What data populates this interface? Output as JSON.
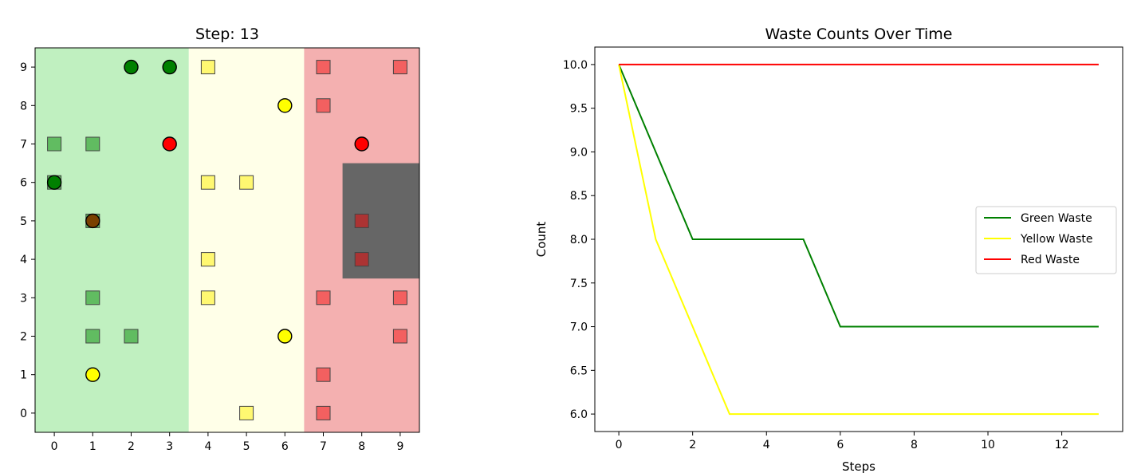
{
  "chart_data": [
    {
      "type": "scatter",
      "title": "Step: 13",
      "xlim": [
        -0.5,
        9.5
      ],
      "ylim": [
        -0.5,
        9.5
      ],
      "x_ticks": [
        0,
        1,
        2,
        3,
        4,
        5,
        6,
        7,
        8,
        9
      ],
      "y_ticks": [
        0,
        1,
        2,
        3,
        4,
        5,
        6,
        7,
        8,
        9
      ],
      "grid": false,
      "zones": [
        {
          "name": "green-zone",
          "x_range": [
            -0.5,
            3.5
          ],
          "color": "#c0f0c0"
        },
        {
          "name": "yellow-zone",
          "x_range": [
            3.5,
            6.5
          ],
          "color": "#ffffe8"
        },
        {
          "name": "red-zone",
          "x_range": [
            6.5,
            9.5
          ],
          "color": "#f4b0b0"
        }
      ],
      "disposal_area": {
        "x_range": [
          7.5,
          9.5
        ],
        "y_range": [
          3.5,
          6.5
        ],
        "color": "#666666"
      },
      "waste": [
        {
          "x": 0,
          "y": 7,
          "color": "green"
        },
        {
          "x": 0,
          "y": 6,
          "color": "green"
        },
        {
          "x": 1,
          "y": 7,
          "color": "green"
        },
        {
          "x": 1,
          "y": 5,
          "color": "green"
        },
        {
          "x": 1,
          "y": 3,
          "color": "green"
        },
        {
          "x": 1,
          "y": 2,
          "color": "green"
        },
        {
          "x": 2,
          "y": 2,
          "color": "green"
        },
        {
          "x": 4,
          "y": 9,
          "color": "yellow"
        },
        {
          "x": 4,
          "y": 6,
          "color": "yellow"
        },
        {
          "x": 5,
          "y": 6,
          "color": "yellow"
        },
        {
          "x": 4,
          "y": 4,
          "color": "yellow"
        },
        {
          "x": 4,
          "y": 3,
          "color": "yellow"
        },
        {
          "x": 5,
          "y": 0,
          "color": "yellow"
        },
        {
          "x": 7,
          "y": 9,
          "color": "red"
        },
        {
          "x": 9,
          "y": 9,
          "color": "red"
        },
        {
          "x": 7,
          "y": 8,
          "color": "red"
        },
        {
          "x": 8,
          "y": 5,
          "color": "red"
        },
        {
          "x": 8,
          "y": 4,
          "color": "red"
        },
        {
          "x": 7,
          "y": 3,
          "color": "red"
        },
        {
          "x": 9,
          "y": 3,
          "color": "red"
        },
        {
          "x": 9,
          "y": 2,
          "color": "red"
        },
        {
          "x": 7,
          "y": 1,
          "color": "red"
        },
        {
          "x": 7,
          "y": 0,
          "color": "red"
        }
      ],
      "robots": [
        {
          "x": 2,
          "y": 9,
          "color": "green"
        },
        {
          "x": 3,
          "y": 9,
          "color": "green"
        },
        {
          "x": 0,
          "y": 6,
          "color": "green"
        },
        {
          "x": 3,
          "y": 7,
          "color": "red"
        },
        {
          "x": 1,
          "y": 5,
          "color": "brown"
        },
        {
          "x": 1,
          "y": 1,
          "color": "yellow"
        },
        {
          "x": 6,
          "y": 8,
          "color": "yellow"
        },
        {
          "x": 6,
          "y": 2,
          "color": "yellow"
        },
        {
          "x": 8,
          "y": 7,
          "color": "red"
        }
      ],
      "colors": {
        "waste_green": "#5cb85c",
        "waste_yellow": "#fff86a",
        "waste_red": "#f25c5c",
        "waste_red_in_dark": "#b03030",
        "robot_green": "#008000",
        "robot_yellow": "#ffff00",
        "robot_red": "#ff0000",
        "robot_brown": "#7a4000"
      }
    },
    {
      "type": "line",
      "title": "Waste Counts Over Time",
      "xlabel": "Steps",
      "ylabel": "Count",
      "xlim": [
        -0.65,
        13.65
      ],
      "ylim": [
        5.8,
        10.2
      ],
      "x_ticks": [
        0,
        2,
        4,
        6,
        8,
        10,
        12
      ],
      "y_ticks": [
        6.0,
        6.5,
        7.0,
        7.5,
        8.0,
        8.5,
        9.0,
        9.5,
        10.0
      ],
      "y_tick_labels": [
        "6.0",
        "6.5",
        "7.0",
        "7.5",
        "8.0",
        "8.5",
        "9.0",
        "9.5",
        "10.0"
      ],
      "grid": false,
      "legend_position": "center-right",
      "x": [
        0,
        1,
        2,
        3,
        4,
        5,
        6,
        7,
        8,
        9,
        10,
        11,
        12,
        13
      ],
      "series": [
        {
          "name": "Green Waste",
          "color": "#008000",
          "values": [
            10,
            9,
            8,
            8,
            8,
            8,
            7,
            7,
            7,
            7,
            7,
            7,
            7,
            7
          ]
        },
        {
          "name": "Yellow Waste",
          "color": "#ffff00",
          "values": [
            10,
            8,
            7,
            6,
            6,
            6,
            6,
            6,
            6,
            6,
            6,
            6,
            6,
            6
          ]
        },
        {
          "name": "Red Waste",
          "color": "#ff0000",
          "values": [
            10,
            10,
            10,
            10,
            10,
            10,
            10,
            10,
            10,
            10,
            10,
            10,
            10,
            10
          ]
        }
      ]
    }
  ]
}
